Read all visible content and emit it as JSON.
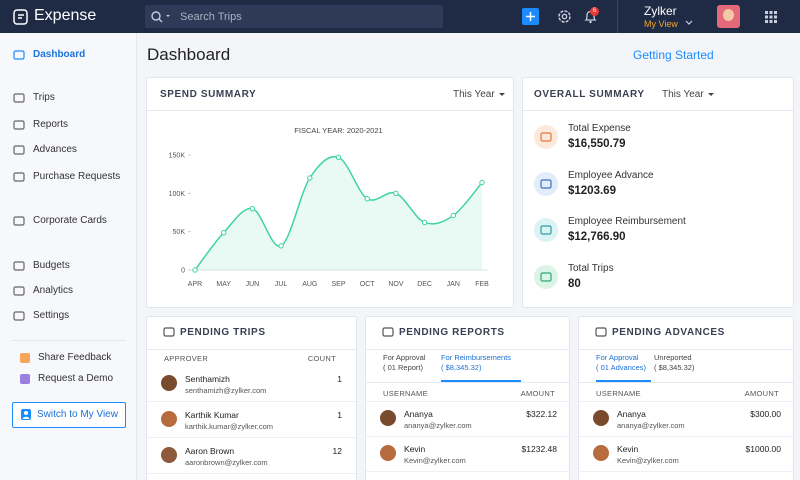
{
  "topbar": {
    "app_name": "Expense",
    "search_placeholder": "Search Trips",
    "notifications": 6,
    "org": "Zylker",
    "view": "My View"
  },
  "sidebar": {
    "items": [
      "Dashboard",
      "Trips",
      "Reports",
      "Advances",
      "Purchase Requests",
      "Corporate Cards",
      "Budgets",
      "Analytics",
      "Settings"
    ],
    "help": [
      "Share Feedback",
      "Request a Demo"
    ],
    "switch_button": "Switch to My View"
  },
  "header": {
    "title": "Dashboard",
    "link": "Getting Started"
  },
  "spend_summary": {
    "title": "SPEND SUMMARY",
    "period": "This Year"
  },
  "chart_data": {
    "type": "line",
    "title": "FISCAL YEAR: 2020-2021",
    "categories": [
      "APR",
      "MAY",
      "JUN",
      "JUL",
      "AUG",
      "SEP",
      "OCT",
      "NOV",
      "DEC",
      "JAN",
      "FEB"
    ],
    "values": [
      0,
      48700,
      80000,
      31500,
      120000,
      147000,
      93000,
      100000,
      62000,
      71000,
      114000
    ],
    "color": "#3fd49d",
    "ylim": [
      0,
      150000
    ],
    "yticks": [
      0,
      {
        "value": 50000,
        "label": "50K"
      },
      {
        "value": 100000,
        "label": "100K"
      },
      {
        "value": 150000,
        "label": "150K"
      }
    ]
  },
  "overall_summary": {
    "title": "OVERALL SUMMARY",
    "period": "This Year",
    "items": [
      {
        "label": "Total Expense",
        "value": "$16,550.79"
      },
      {
        "label": "Employee Advance",
        "value": "$1203.69"
      },
      {
        "label": "Employee Reimbursement",
        "value": "$12,766.90"
      },
      {
        "label": "Total Trips",
        "value": "80"
      }
    ]
  },
  "pending_trips": {
    "title": "PENDING TRIPS",
    "columns": [
      "APPROVER",
      "COUNT"
    ],
    "rows": [
      {
        "name": "Senthamizh",
        "email": "senthamizh@zylker.com",
        "count": 1
      },
      {
        "name": "Karthik Kumar",
        "email": "karthik.kumar@zylker.com",
        "count": 1
      },
      {
        "name": "Aaron Brown",
        "email": "aaronbrown@zylker.com",
        "count": 12
      }
    ]
  },
  "pending_reports": {
    "title": "PENDING REPORTS",
    "tabs": [
      {
        "label": "For Approval",
        "sub": "( 01 Report)"
      },
      {
        "label": "For Reimbursements",
        "sub": "( $8,345.32)"
      }
    ],
    "columns": [
      "USERNAME",
      "AMOUNT"
    ],
    "rows": [
      {
        "name": "Ananya",
        "email": "ananya@zylker.com",
        "amount": "$322.12"
      },
      {
        "name": "Kevin",
        "email": "Kevin@zylker.com",
        "amount": "$1232.48"
      }
    ]
  },
  "pending_advances": {
    "title": "PENDING ADVANCES",
    "tabs": [
      {
        "label": "For Approval",
        "sub": "( 01 Advances)"
      },
      {
        "label": "Unreported",
        "sub": "( $8,345.32)"
      }
    ],
    "columns": [
      "USERNAME",
      "AMOUNT"
    ],
    "rows": [
      {
        "name": "Ananya",
        "email": "ananya@zylker.com",
        "amount": "$300.00"
      },
      {
        "name": "Kevin",
        "email": "Kevin@zylker.com",
        "amount": "$1000.00"
      }
    ]
  }
}
